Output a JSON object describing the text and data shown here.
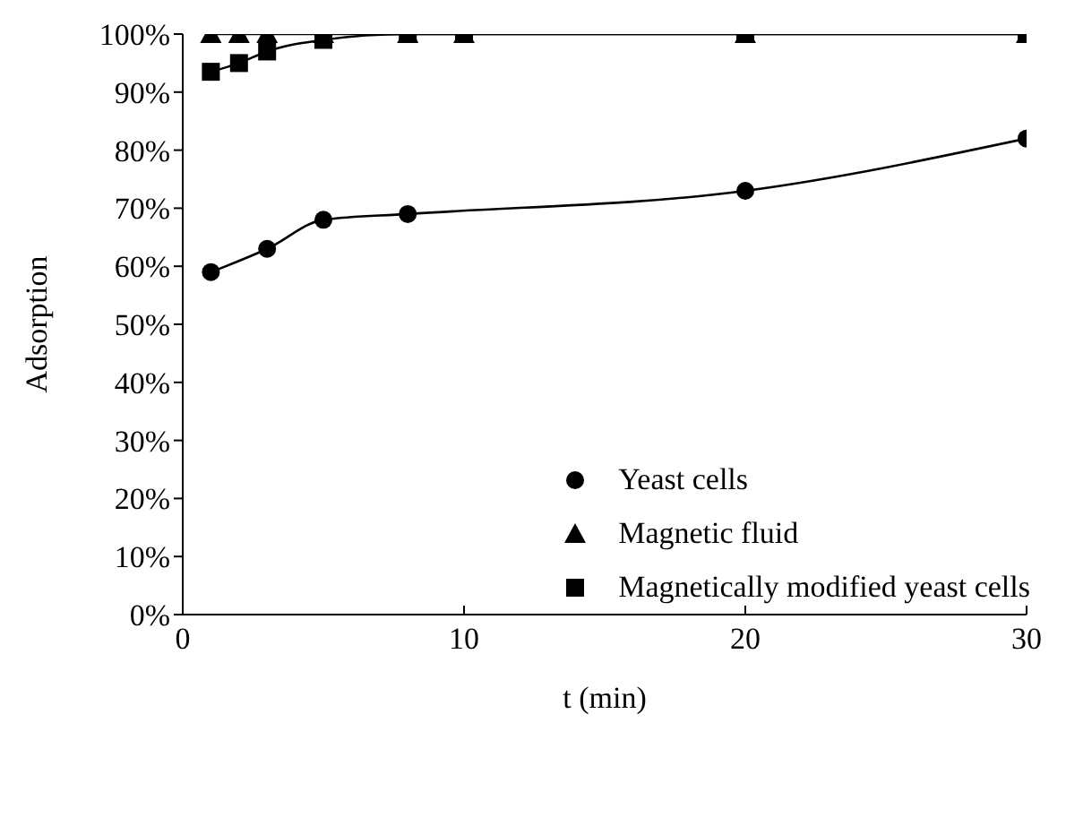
{
  "chart_data": {
    "type": "line",
    "xlabel": "t (min)",
    "ylabel": "Adsorption",
    "xlim": [
      0,
      30
    ],
    "xticks": [
      0,
      10,
      20,
      30
    ],
    "ylim": [
      0,
      100
    ],
    "yticks": [
      {
        "value": 0,
        "label": "0%"
      },
      {
        "value": 10,
        "label": "10%"
      },
      {
        "value": 20,
        "label": "20%"
      },
      {
        "value": 30,
        "label": "30%"
      },
      {
        "value": 40,
        "label": "40%"
      },
      {
        "value": 50,
        "label": "50%"
      },
      {
        "value": 60,
        "label": "60%"
      },
      {
        "value": 70,
        "label": "70%"
      },
      {
        "value": 80,
        "label": "80%"
      },
      {
        "value": 90,
        "label": "90%"
      },
      {
        "value": 100,
        "label": "100%"
      }
    ],
    "legend": "bottom right",
    "line_style": "solid",
    "series": [
      {
        "name": "Yeast cells",
        "color": "#000000",
        "marker": "circle",
        "x": [
          1,
          3,
          5,
          8,
          20,
          30
        ],
        "values": [
          59,
          63,
          68,
          69,
          73,
          82
        ]
      },
      {
        "name": "Magnetic fluid",
        "color": "#000000",
        "marker": "triangle",
        "x": [
          1,
          2,
          3,
          5,
          8,
          10,
          20,
          30
        ],
        "values": [
          100,
          100,
          100,
          100,
          100,
          100,
          100,
          100
        ]
      },
      {
        "name": "Magnetically modified yeast cells",
        "color": "#000000",
        "marker": "square",
        "x": [
          1,
          2,
          3,
          5,
          8,
          10,
          20,
          30
        ],
        "values": [
          93.5,
          95,
          97,
          99,
          100,
          100,
          100,
          100
        ]
      }
    ]
  }
}
